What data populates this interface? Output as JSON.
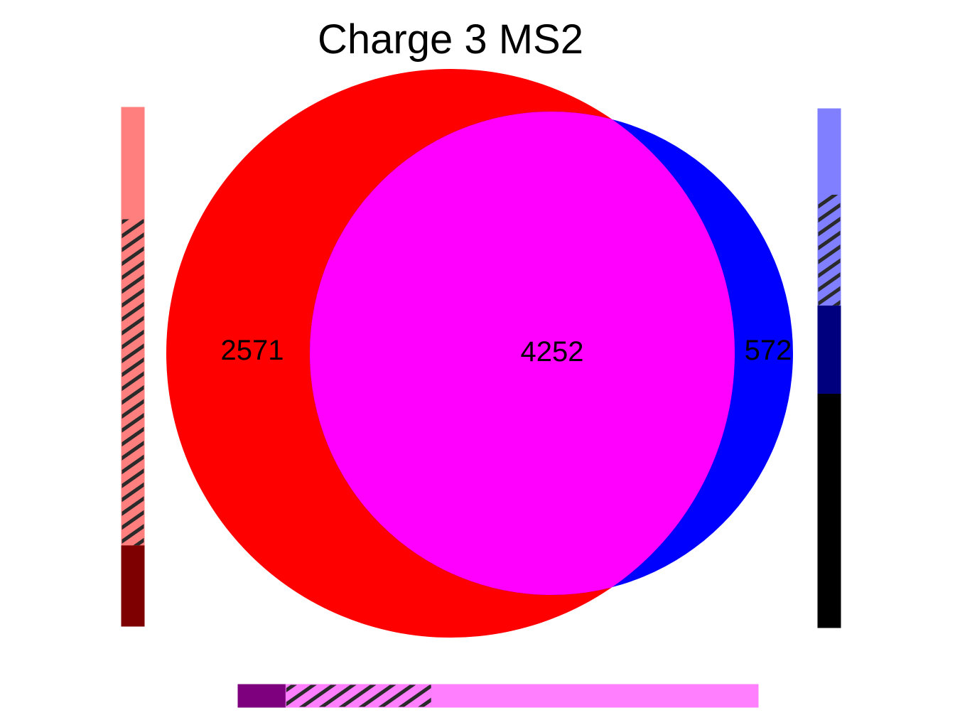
{
  "chart_data": {
    "type": "venn",
    "title": "Charge 3 MS2",
    "sets": [
      {
        "color": "#ff0000",
        "only": 2571
      },
      {
        "color": "#0000ff",
        "only": 572
      }
    ],
    "intersection": {
      "color": "#ff00ff",
      "value": 4252
    },
    "labels": {
      "left_only": "2571",
      "overlap": "4252",
      "right_only": "572"
    },
    "side_bars": {
      "left": {
        "segments": [
          {
            "kind": "solid",
            "color": "#ff7f7f",
            "fraction": 0.215
          },
          {
            "kind": "zebra",
            "color": "#ff7f7f",
            "fraction": 0.63
          },
          {
            "kind": "solid",
            "color": "#7f0000",
            "fraction": 0.155
          }
        ]
      },
      "right": {
        "segments": [
          {
            "kind": "solid",
            "color": "#7f7fff",
            "fraction": 0.165
          },
          {
            "kind": "zebra",
            "color": "#7f7fff",
            "fraction": 0.215
          },
          {
            "kind": "solid",
            "color": "#00007f",
            "fraction": 0.17
          },
          {
            "kind": "solid",
            "color": "#000000",
            "fraction": 0.45
          }
        ]
      },
      "bottom": {
        "segments": [
          {
            "kind": "solid",
            "color": "#7f007f",
            "fraction": 0.092
          },
          {
            "kind": "zebra",
            "color": "#ff7fff",
            "fraction": 0.28
          },
          {
            "kind": "solid",
            "color": "#ff7fff",
            "fraction": 0.628
          }
        ]
      }
    }
  }
}
